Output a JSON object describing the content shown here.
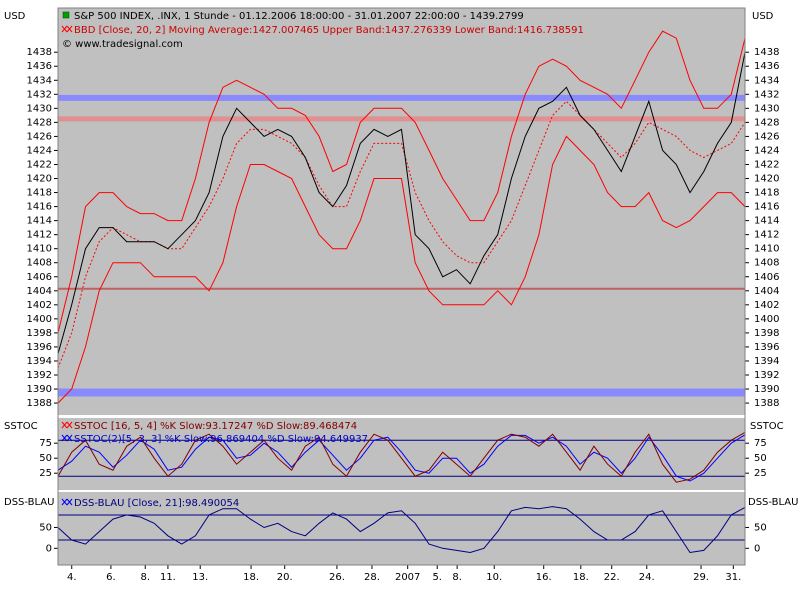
{
  "chart_data": [
    {
      "type": "line",
      "title": "S&P 500 INDEX, .INX, 1 Stunde - 01.12.2006 18:00:00 - 31.01.2007 22:00:00 - 1439.2799",
      "subtitle": "BBD [Close, 20, 2] Moving Average:1427.007465 Upper Band:1437.276339 Lower Band:1416.738591",
      "annotation": "© www.tradesignal.com",
      "ylabel": "USD",
      "xlim": [
        0,
        100
      ],
      "xticks": [
        {
          "value": 2,
          "label": "4."
        },
        {
          "value": 7.7,
          "label": "6."
        },
        {
          "value": 12.7,
          "label": "8."
        },
        {
          "value": 16,
          "label": "11."
        },
        {
          "value": 20.7,
          "label": "13."
        },
        {
          "value": 28.1,
          "label": "18."
        },
        {
          "value": 33,
          "label": "20."
        },
        {
          "value": 40.6,
          "label": "26."
        },
        {
          "value": 45.7,
          "label": "28."
        },
        {
          "value": 50.9,
          "label": "2007"
        },
        {
          "value": 55.2,
          "label": "5."
        },
        {
          "value": 58.1,
          "label": "8."
        },
        {
          "value": 63.5,
          "label": "10."
        },
        {
          "value": 70.7,
          "label": "16."
        },
        {
          "value": 76.1,
          "label": "18."
        },
        {
          "value": 80.6,
          "label": "22."
        },
        {
          "value": 85.7,
          "label": "24."
        },
        {
          "value": 93.6,
          "label": "29."
        },
        {
          "value": 98.3,
          "label": "31."
        }
      ],
      "ylim": [
        1386.3,
        1444.3
      ],
      "yticks": [
        1388,
        1390,
        1392,
        1394,
        1396,
        1398,
        1400,
        1402,
        1404,
        1406,
        1408,
        1410,
        1412,
        1414,
        1416,
        1418,
        1420,
        1422,
        1424,
        1426,
        1428,
        1430,
        1432,
        1434,
        1436,
        1438
      ],
      "reference_lines": [
        {
          "value": 1431.5,
          "color": "#8a8aff"
        },
        {
          "value": 1428.5,
          "color": "#e09090"
        },
        {
          "value": 1404.3,
          "color": "#c06060"
        },
        {
          "value": 1389.5,
          "color": "#8a8aff"
        }
      ],
      "x": [
        0,
        2,
        4,
        6,
        8,
        10,
        12,
        14,
        16,
        18,
        20,
        22,
        24,
        26,
        28,
        30,
        32,
        34,
        36,
        38,
        40,
        42,
        44,
        46,
        48,
        50,
        52,
        54,
        56,
        58,
        60,
        62,
        64,
        66,
        68,
        70,
        72,
        74,
        76,
        78,
        80,
        82,
        84,
        86,
        88,
        90,
        92,
        94,
        96,
        98,
        100
      ],
      "series": [
        {
          "color": "#ff0000",
          "values": [
            1398,
            1406,
            1416,
            1418,
            1418,
            1416,
            1415,
            1415,
            1414,
            1414,
            1420,
            1428,
            1433,
            1434,
            1433,
            1432,
            1430,
            1430,
            1429,
            1426,
            1421,
            1422,
            1428,
            1430,
            1430,
            1430,
            1428,
            1424,
            1420,
            1417,
            1414,
            1414,
            1418,
            1426,
            1432,
            1436,
            1437,
            1436,
            1434,
            1433,
            1432,
            1430,
            1434,
            1438,
            1441,
            1440,
            1434,
            1430,
            1430,
            1432,
            1440
          ]
        },
        {
          "color": "#ff0000",
          "dashed": true,
          "values": [
            1393,
            1398,
            1406,
            1411,
            1413,
            1412,
            1411,
            1411,
            1410,
            1410,
            1413,
            1416,
            1420,
            1425,
            1427,
            1427,
            1426,
            1425,
            1423,
            1419,
            1416,
            1416,
            1421,
            1425,
            1425,
            1425,
            1418,
            1414,
            1411,
            1409,
            1408,
            1408,
            1411,
            1414,
            1419,
            1424,
            1429,
            1431,
            1429,
            1427,
            1425,
            1423,
            1425,
            1428,
            1427,
            1426,
            1424,
            1423,
            1424,
            1425,
            1428
          ]
        },
        {
          "color": "#ff0000",
          "values": [
            1388,
            1390,
            1396,
            1404,
            1408,
            1408,
            1408,
            1406,
            1406,
            1406,
            1406,
            1404,
            1408,
            1416,
            1422,
            1422,
            1421,
            1420,
            1416,
            1412,
            1410,
            1410,
            1414,
            1420,
            1420,
            1420,
            1408,
            1404,
            1402,
            1402,
            1402,
            1402,
            1404,
            1402,
            1406,
            1412,
            1422,
            1426,
            1424,
            1422,
            1418,
            1416,
            1416,
            1418,
            1414,
            1413,
            1414,
            1416,
            1418,
            1418,
            1416
          ]
        },
        {
          "color": "#000000",
          "values": [
            1395,
            1402,
            1410,
            1413,
            1413,
            1411,
            1411,
            1411,
            1410,
            1412,
            1414,
            1418,
            1426,
            1430,
            1428,
            1426,
            1427,
            1426,
            1423,
            1418,
            1416,
            1419,
            1425,
            1427,
            1426,
            1427,
            1412,
            1410,
            1406,
            1407,
            1405,
            1409,
            1412,
            1420,
            1426,
            1430,
            1431,
            1433,
            1429,
            1427,
            1424,
            1421,
            1426,
            1431,
            1424,
            1422,
            1418,
            1421,
            1425,
            1428,
            1438
          ]
        }
      ]
    },
    {
      "type": "line",
      "title": "SSTOC [16, 5, 4] %K Slow:93.17247 %D Slow:89.468474",
      "subtitle": "SSTOC(2)[5, 3, 3] %K Slow:96.869404 %D Slow:94.649937",
      "ylabel": "SSTOC",
      "xlim": [
        0,
        100
      ],
      "ylim": [
        -3,
        117
      ],
      "yticks": [
        25,
        50,
        75
      ],
      "reference_lines": [
        {
          "value": 80,
          "color": "#000080"
        },
        {
          "value": 20,
          "color": "#000080"
        }
      ],
      "x": [
        0,
        2,
        4,
        6,
        8,
        10,
        12,
        14,
        16,
        18,
        20,
        22,
        24,
        26,
        28,
        30,
        32,
        34,
        36,
        38,
        40,
        42,
        44,
        46,
        48,
        50,
        52,
        54,
        56,
        58,
        60,
        62,
        64,
        66,
        68,
        70,
        72,
        74,
        76,
        78,
        80,
        82,
        84,
        86,
        88,
        90,
        92,
        94,
        96,
        98,
        100
      ],
      "series": [
        {
          "color": "#0000ff",
          "values": [
            30,
            45,
            70,
            60,
            35,
            55,
            80,
            65,
            30,
            35,
            65,
            85,
            80,
            50,
            55,
            75,
            60,
            35,
            60,
            80,
            55,
            30,
            50,
            80,
            85,
            60,
            30,
            25,
            50,
            50,
            25,
            40,
            70,
            88,
            88,
            75,
            85,
            70,
            40,
            60,
            50,
            25,
            50,
            85,
            55,
            20,
            12,
            25,
            50,
            75,
            89
          ]
        },
        {
          "color": "#800000",
          "values": [
            20,
            60,
            80,
            40,
            30,
            70,
            85,
            50,
            20,
            40,
            80,
            90,
            70,
            40,
            60,
            80,
            50,
            30,
            70,
            85,
            40,
            20,
            60,
            90,
            80,
            50,
            20,
            30,
            60,
            40,
            20,
            50,
            80,
            90,
            85,
            70,
            90,
            60,
            30,
            70,
            40,
            20,
            60,
            90,
            40,
            10,
            15,
            30,
            60,
            80,
            93
          ]
        }
      ]
    },
    {
      "type": "line",
      "title": "DSS-BLAU [Close, 21]:98.490054",
      "ylabel": "DSS-BLAU",
      "xlim": [
        0,
        100
      ],
      "ylim": [
        -40,
        135
      ],
      "yticks": [
        0,
        50
      ],
      "reference_lines": [
        {
          "value": 80,
          "color": "#000080"
        },
        {
          "value": 20,
          "color": "#000080"
        }
      ],
      "x": [
        0,
        2,
        4,
        6,
        8,
        10,
        12,
        14,
        16,
        18,
        20,
        22,
        24,
        26,
        28,
        30,
        32,
        34,
        36,
        38,
        40,
        42,
        44,
        46,
        48,
        50,
        52,
        54,
        56,
        58,
        60,
        62,
        64,
        66,
        68,
        70,
        72,
        74,
        76,
        78,
        80,
        82,
        84,
        86,
        88,
        90,
        92,
        94,
        96,
        98,
        100
      ],
      "series": [
        {
          "color": "#000080",
          "values": [
            50,
            20,
            10,
            40,
            70,
            80,
            75,
            60,
            30,
            10,
            30,
            80,
            95,
            95,
            70,
            50,
            60,
            40,
            30,
            60,
            85,
            70,
            40,
            60,
            85,
            90,
            60,
            10,
            0,
            -5,
            -10,
            0,
            40,
            90,
            98,
            95,
            100,
            95,
            70,
            40,
            20,
            20,
            40,
            80,
            90,
            40,
            -10,
            -5,
            30,
            80,
            98
          ]
        }
      ]
    }
  ]
}
